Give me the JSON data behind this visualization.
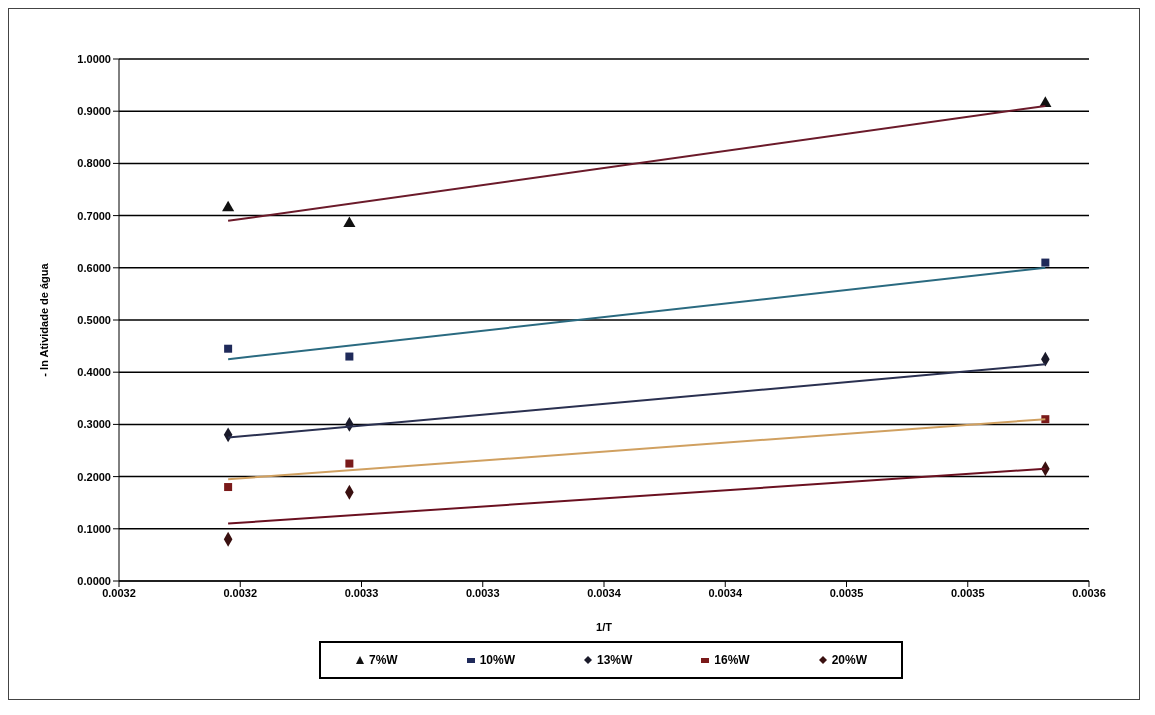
{
  "chart_data": {
    "type": "scatter",
    "xlabel": "1/T",
    "ylabel": "- ln Atividade de água",
    "xlim": [
      0.00315,
      0.00355
    ],
    "xticks": [
      {
        "value": 0.00315,
        "label": "0.0032"
      },
      {
        "value": 0.0032,
        "label": "0.0032"
      },
      {
        "value": 0.00325,
        "label": "0.0033"
      },
      {
        "value": 0.0033,
        "label": "0.0033"
      },
      {
        "value": 0.00335,
        "label": "0.0034"
      },
      {
        "value": 0.0034,
        "label": "0.0034"
      },
      {
        "value": 0.00345,
        "label": "0.0035"
      },
      {
        "value": 0.0035,
        "label": "0.0035"
      },
      {
        "value": 0.00355,
        "label": "0.0036"
      }
    ],
    "ylim": [
      0,
      1
    ],
    "yticks": [
      {
        "value": 0,
        "label": "0.0000"
      },
      {
        "value": 0.1,
        "label": "0.1000"
      },
      {
        "value": 0.2,
        "label": "0.2000"
      },
      {
        "value": 0.3,
        "label": "0.3000"
      },
      {
        "value": 0.4,
        "label": "0.4000"
      },
      {
        "value": 0.5,
        "label": "0.5000"
      },
      {
        "value": 0.6,
        "label": "0.6000"
      },
      {
        "value": 0.7,
        "label": "0.7000"
      },
      {
        "value": 0.8,
        "label": "0.8000"
      },
      {
        "value": 0.9,
        "label": "0.9000"
      },
      {
        "value": 1,
        "label": "1.0000"
      }
    ],
    "grid": "y",
    "legend": "bottom",
    "series": [
      {
        "name": "7%W",
        "color": "#111111",
        "marker": "triangle",
        "x": [
          0.003195,
          0.003245,
          0.003532
        ],
        "values": [
          0.715,
          0.685,
          0.915
        ]
      },
      {
        "name": "10%W",
        "color": "#1f2a5a",
        "marker": "square",
        "x": [
          0.003195,
          0.003245,
          0.003532
        ],
        "values": [
          0.445,
          0.43,
          0.61
        ]
      },
      {
        "name": "13%W",
        "color": "#1a1a2a",
        "marker": "diamond",
        "x": [
          0.003195,
          0.003245,
          0.003532
        ],
        "values": [
          0.28,
          0.3,
          0.425
        ]
      },
      {
        "name": "16%W",
        "color": "#7a1a1a",
        "marker": "square",
        "x": [
          0.003195,
          0.003245,
          0.003532
        ],
        "values": [
          0.18,
          0.225,
          0.31
        ]
      },
      {
        "name": "20%W",
        "color": "#3a1010",
        "marker": "diamond",
        "x": [
          0.003195,
          0.003245,
          0.003532
        ],
        "values": [
          0.08,
          0.17,
          0.215
        ]
      },
      {
        "type": "line",
        "color": "#6b1a2a",
        "x": [
          0.003195,
          0.003532
        ],
        "values": [
          0.69,
          0.91
        ]
      },
      {
        "type": "line",
        "color": "#2a6a80",
        "x": [
          0.003195,
          0.003532
        ],
        "values": [
          0.425,
          0.6
        ]
      },
      {
        "type": "line",
        "color": "#2a3050",
        "x": [
          0.003195,
          0.003532
        ],
        "values": [
          0.275,
          0.415
        ]
      },
      {
        "type": "line",
        "color": "#d0a060",
        "x": [
          0.003195,
          0.003532
        ],
        "values": [
          0.195,
          0.31
        ]
      },
      {
        "type": "line",
        "color": "#6a1020",
        "x": [
          0.003195,
          0.003532
        ],
        "values": [
          0.11,
          0.215
        ]
      }
    ]
  }
}
